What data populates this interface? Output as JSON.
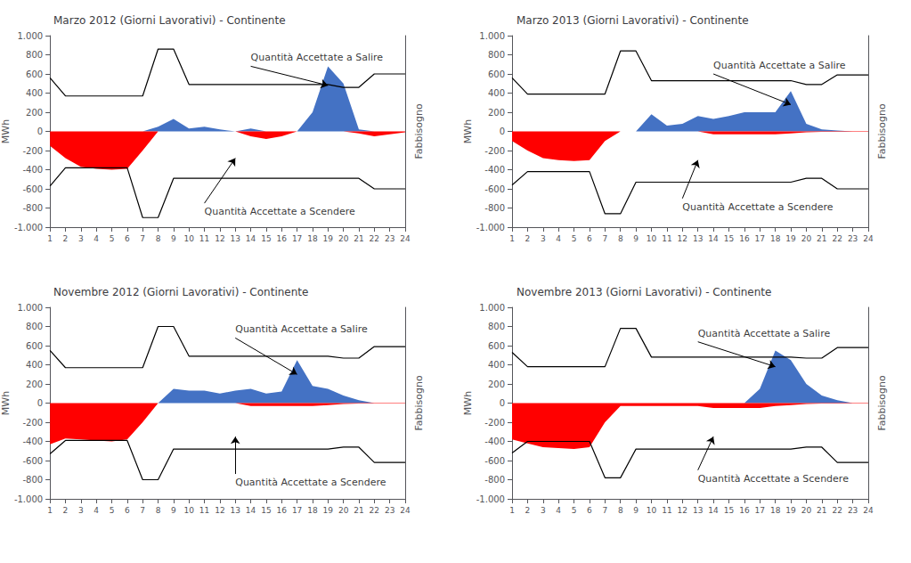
{
  "chart_data": [
    {
      "type": "area",
      "title": "Marzo 2012 (Giorni Lavorativi) - Continente",
      "ylabel": "MWh",
      "y2label": "Fabbisogno",
      "grid": false,
      "x": [
        1,
        2,
        3,
        4,
        5,
        6,
        7,
        8,
        9,
        10,
        11,
        12,
        13,
        14,
        15,
        16,
        17,
        18,
        19,
        20,
        21,
        22,
        23,
        24
      ],
      "xlim": [
        1,
        24
      ],
      "xticks": [
        1,
        2,
        3,
        4,
        5,
        6,
        7,
        8,
        9,
        10,
        11,
        12,
        13,
        14,
        15,
        16,
        17,
        18,
        19,
        20,
        21,
        22,
        23,
        24
      ],
      "ylim": [
        -1000,
        1000
      ],
      "yticks": [
        {
          "value": -1000,
          "label": "-1.000"
        },
        -800,
        -600,
        -400,
        -200,
        0,
        200,
        400,
        600,
        800,
        {
          "value": 1000,
          "label": "1.000"
        }
      ],
      "series": [
        {
          "type": "area",
          "color": "#4472C4",
          "values": [
            0,
            0,
            0,
            0,
            0,
            0,
            0,
            50,
            130,
            30,
            50,
            20,
            0,
            30,
            0,
            0,
            0,
            200,
            680,
            500,
            20,
            0,
            0,
            0
          ]
        },
        {
          "type": "area",
          "color": "#FF0000",
          "values": [
            -150,
            -280,
            -370,
            -390,
            -400,
            -390,
            -200,
            0,
            0,
            0,
            0,
            0,
            0,
            -50,
            -80,
            -50,
            0,
            0,
            0,
            0,
            -20,
            -50,
            -30,
            -10
          ]
        },
        {
          "type": "line",
          "color": "#000000",
          "values": [
            560,
            370,
            370,
            370,
            370,
            370,
            370,
            860,
            860,
            490,
            490,
            490,
            490,
            490,
            490,
            490,
            490,
            490,
            490,
            460,
            460,
            600,
            600,
            600
          ]
        },
        {
          "type": "line",
          "color": "#000000",
          "values": [
            -570,
            -380,
            -380,
            -380,
            -380,
            -380,
            -900,
            -900,
            -490,
            -490,
            -490,
            -490,
            -490,
            -490,
            -490,
            -490,
            -490,
            -490,
            -490,
            -490,
            -490,
            -600,
            -600,
            -600
          ]
        }
      ],
      "annotations": [
        {
          "text": "Quantità Accettate a Salire",
          "xy": [
            19,
            480
          ],
          "xytext": [
            14,
            680
          ]
        },
        {
          "text": "Quantità Accettate a Scendere",
          "xy": [
            13,
            -280
          ],
          "xytext": [
            11,
            -750
          ]
        }
      ]
    },
    {
      "type": "area",
      "title": "Marzo 2013 (Giorni Lavorativi) - Continente",
      "ylabel": "MWh",
      "y2label": "Fabbisogno",
      "grid": false,
      "x": [
        1,
        2,
        3,
        4,
        5,
        6,
        7,
        8,
        9,
        10,
        11,
        12,
        13,
        14,
        15,
        16,
        17,
        18,
        19,
        20,
        21,
        22,
        23,
        24
      ],
      "xlim": [
        1,
        24
      ],
      "xticks": [
        1,
        2,
        3,
        4,
        5,
        6,
        7,
        8,
        9,
        10,
        11,
        12,
        13,
        14,
        15,
        16,
        17,
        18,
        19,
        20,
        21,
        22,
        23,
        24
      ],
      "ylim": [
        -1000,
        1000
      ],
      "yticks": [
        {
          "value": -1000,
          "label": "-1.000"
        },
        -800,
        -600,
        -400,
        -200,
        0,
        200,
        400,
        600,
        800,
        {
          "value": 1000,
          "label": "1.000"
        }
      ],
      "series": [
        {
          "type": "area",
          "color": "#4472C4",
          "values": [
            0,
            0,
            0,
            0,
            0,
            0,
            0,
            0,
            0,
            180,
            60,
            80,
            160,
            130,
            160,
            200,
            200,
            200,
            420,
            80,
            20,
            10,
            0,
            0
          ]
        },
        {
          "type": "area",
          "color": "#FF0000",
          "values": [
            -100,
            -200,
            -280,
            -300,
            -310,
            -300,
            -100,
            0,
            0,
            0,
            0,
            0,
            0,
            -30,
            -30,
            -30,
            -30,
            -30,
            -20,
            -10,
            -5,
            -5,
            -5,
            -5
          ]
        },
        {
          "type": "line",
          "color": "#000000",
          "values": [
            560,
            390,
            390,
            390,
            390,
            390,
            390,
            840,
            840,
            530,
            530,
            530,
            530,
            530,
            530,
            530,
            530,
            530,
            530,
            490,
            490,
            590,
            590,
            590
          ]
        },
        {
          "type": "line",
          "color": "#000000",
          "values": [
            -560,
            -420,
            -420,
            -420,
            -420,
            -420,
            -860,
            -860,
            -530,
            -530,
            -530,
            -530,
            -530,
            -530,
            -530,
            -530,
            -530,
            -530,
            -530,
            -490,
            -490,
            -600,
            -600,
            -600
          ]
        }
      ],
      "annotations": [
        {
          "text": "Quantità Accettate a Salire",
          "xy": [
            19,
            280
          ],
          "xytext": [
            14,
            600
          ]
        },
        {
          "text": "Quantità Accettate a Scendere",
          "xy": [
            13,
            -300
          ],
          "xytext": [
            12,
            -700
          ]
        }
      ]
    },
    {
      "type": "area",
      "title": "Novembre 2012 (Giorni Lavorativi) - Continente",
      "ylabel": "MWh",
      "y2label": "Fabbisogno",
      "grid": false,
      "x": [
        1,
        2,
        3,
        4,
        5,
        6,
        7,
        8,
        9,
        10,
        11,
        12,
        13,
        14,
        15,
        16,
        17,
        18,
        19,
        20,
        21,
        22,
        23,
        24
      ],
      "xlim": [
        1,
        24
      ],
      "xticks": [
        1,
        2,
        3,
        4,
        5,
        6,
        7,
        8,
        9,
        10,
        11,
        12,
        13,
        14,
        15,
        16,
        17,
        18,
        19,
        20,
        21,
        22,
        23,
        24
      ],
      "ylim": [
        -1000,
        1000
      ],
      "yticks": [
        {
          "value": -1000,
          "label": "-1.000"
        },
        -800,
        -600,
        -400,
        -200,
        0,
        200,
        400,
        600,
        800,
        {
          "value": 1000,
          "label": "1.000"
        }
      ],
      "series": [
        {
          "type": "area",
          "color": "#4472C4",
          "values": [
            0,
            0,
            0,
            0,
            0,
            0,
            0,
            0,
            150,
            130,
            130,
            100,
            130,
            150,
            100,
            120,
            450,
            180,
            150,
            80,
            30,
            0,
            0,
            0
          ]
        },
        {
          "type": "area",
          "color": "#FF0000",
          "values": [
            -430,
            -370,
            -380,
            -390,
            -400,
            -380,
            -200,
            0,
            0,
            0,
            0,
            0,
            0,
            -30,
            -30,
            -30,
            -30,
            -30,
            -20,
            -10,
            -5,
            -5,
            -5,
            -5
          ]
        },
        {
          "type": "line",
          "color": "#000000",
          "values": [
            550,
            370,
            370,
            370,
            370,
            370,
            370,
            800,
            800,
            490,
            490,
            490,
            490,
            490,
            490,
            490,
            490,
            490,
            490,
            470,
            470,
            590,
            590,
            590
          ]
        },
        {
          "type": "line",
          "color": "#000000",
          "values": [
            -530,
            -390,
            -390,
            -390,
            -390,
            -390,
            -800,
            -800,
            -480,
            -480,
            -480,
            -480,
            -480,
            -480,
            -480,
            -480,
            -480,
            -480,
            -480,
            -460,
            -460,
            -620,
            -620,
            -620
          ]
        }
      ],
      "annotations": [
        {
          "text": "Quantità Accettate a Salire",
          "xy": [
            17,
            300
          ],
          "xytext": [
            13,
            680
          ]
        },
        {
          "text": "Quantità Accettate a Scendere",
          "xy": [
            13,
            -350
          ],
          "xytext": [
            13,
            -740
          ]
        }
      ]
    },
    {
      "type": "area",
      "title": "Novembre 2013 (Giorni Lavorativi) - Continente",
      "ylabel": "MWh",
      "y2label": "Fabbisogno",
      "grid": false,
      "x": [
        1,
        2,
        3,
        4,
        5,
        6,
        7,
        8,
        9,
        10,
        11,
        12,
        13,
        14,
        15,
        16,
        17,
        18,
        19,
        20,
        21,
        22,
        23,
        24
      ],
      "xlim": [
        1,
        24
      ],
      "xticks": [
        1,
        2,
        3,
        4,
        5,
        6,
        7,
        8,
        9,
        10,
        11,
        12,
        13,
        14,
        15,
        16,
        17,
        18,
        19,
        20,
        21,
        22,
        23,
        24
      ],
      "ylim": [
        -1000,
        1000
      ],
      "yticks": [
        {
          "value": -1000,
          "label": "-1.000"
        },
        -800,
        -600,
        -400,
        -200,
        0,
        200,
        400,
        600,
        800,
        {
          "value": 1000,
          "label": "1.000"
        }
      ],
      "series": [
        {
          "type": "area",
          "color": "#4472C4",
          "values": [
            0,
            0,
            0,
            0,
            0,
            0,
            0,
            0,
            0,
            0,
            0,
            0,
            0,
            0,
            0,
            0,
            150,
            550,
            450,
            200,
            80,
            30,
            0,
            0
          ]
        },
        {
          "type": "area",
          "color": "#FF0000",
          "values": [
            -380,
            -420,
            -460,
            -470,
            -480,
            -460,
            -200,
            -30,
            -30,
            -30,
            -30,
            -30,
            -30,
            -50,
            -50,
            -50,
            -50,
            -30,
            -20,
            -10,
            -5,
            -5,
            -5,
            -5
          ]
        },
        {
          "type": "line",
          "color": "#000000",
          "values": [
            530,
            380,
            380,
            380,
            380,
            380,
            380,
            780,
            780,
            480,
            480,
            480,
            480,
            480,
            480,
            480,
            480,
            480,
            480,
            470,
            470,
            580,
            580,
            580
          ]
        },
        {
          "type": "line",
          "color": "#000000",
          "values": [
            -520,
            -400,
            -400,
            -400,
            -400,
            -400,
            -780,
            -780,
            -480,
            -480,
            -480,
            -480,
            -480,
            -480,
            -480,
            -480,
            -480,
            -480,
            -480,
            -460,
            -460,
            -620,
            -620,
            -620
          ]
        }
      ],
      "annotations": [
        {
          "text": "Quantità Accettate a Salire",
          "xy": [
            18,
            380
          ],
          "xytext": [
            13,
            640
          ]
        },
        {
          "text": "Quantità Accettate a Scendere",
          "xy": [
            14,
            -350
          ],
          "xytext": [
            13,
            -700
          ]
        }
      ]
    }
  ]
}
